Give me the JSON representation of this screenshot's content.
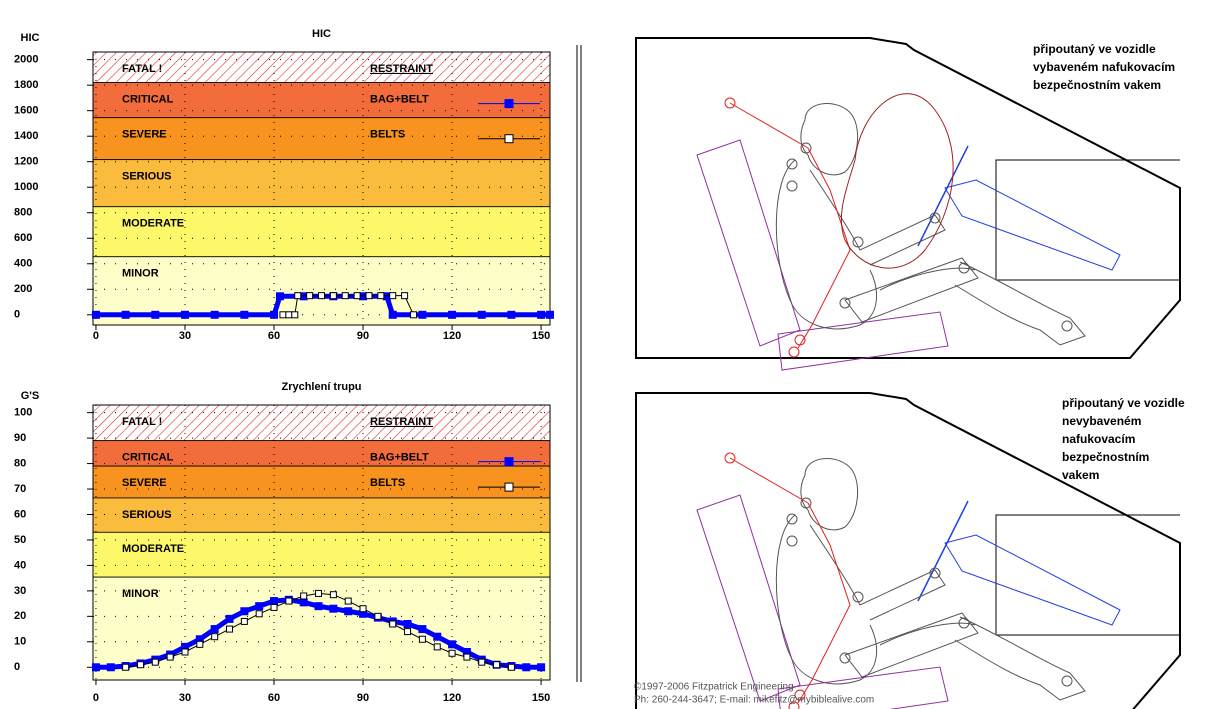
{
  "chart_data": [
    {
      "type": "line",
      "title": "HIC",
      "ylabel": "HIC",
      "legend_title": "RESTRAINT",
      "xlim": [
        -1,
        153
      ],
      "ylim": [
        -80,
        2060
      ],
      "xticks": [
        0,
        30,
        60,
        90,
        120,
        150
      ],
      "yticks": [
        0,
        200,
        400,
        600,
        800,
        1000,
        1200,
        1400,
        1600,
        1800,
        2000
      ],
      "grid": true,
      "bands": [
        {
          "label": "FATAL !",
          "bottom": 1820,
          "color": "#ffffff",
          "hatch": true
        },
        {
          "label": "CRITICAL",
          "bottom": 1545,
          "color": "#f26c3c"
        },
        {
          "label": "SEVERE",
          "bottom": 1216,
          "color": "#f7931e"
        },
        {
          "label": "SERIOUS",
          "bottom": 847,
          "color": "#fbbb3c"
        },
        {
          "label": "MODERATE",
          "bottom": 455,
          "color": "#fdf76a"
        },
        {
          "label": "MINOR",
          "color": "#fefec8"
        }
      ],
      "series": [
        {
          "name": "BAG+BELT",
          "color": "#0000ff",
          "marker": "filled",
          "x": [
            0,
            10,
            20,
            30,
            40,
            50,
            60,
            62,
            70,
            80,
            90,
            98,
            100,
            110,
            120,
            130,
            140,
            150,
            153
          ],
          "values": [
            0,
            0,
            0,
            0,
            0,
            0,
            0,
            145,
            145,
            145,
            145,
            145,
            0,
            0,
            0,
            0,
            0,
            0,
            0
          ]
        },
        {
          "name": "BELTS",
          "color": "#000000",
          "marker": "open",
          "x": [
            63,
            65,
            67,
            68,
            72,
            76,
            80,
            84,
            88,
            92,
            96,
            100,
            104,
            107
          ],
          "values": [
            0,
            0,
            0,
            150,
            150,
            150,
            150,
            150,
            150,
            150,
            150,
            150,
            150,
            0
          ]
        }
      ]
    },
    {
      "type": "line",
      "title": "Zrychlení trupu",
      "ylabel": "G'S",
      "legend_title": "RESTRAINT",
      "xlim": [
        -1,
        153
      ],
      "ylim": [
        -5,
        103
      ],
      "xticks": [
        0,
        30,
        60,
        90,
        120,
        150
      ],
      "yticks": [
        0,
        10,
        20,
        30,
        40,
        50,
        60,
        70,
        80,
        90,
        100
      ],
      "grid": true,
      "bands": [
        {
          "label": "FATAL !",
          "bottom": 89,
          "color": "#ffffff",
          "hatch": true
        },
        {
          "label": "CRITICAL",
          "bottom": 79,
          "color": "#f26c3c"
        },
        {
          "label": "SEVERE",
          "bottom": 66.5,
          "color": "#f7931e"
        },
        {
          "label": "SERIOUS",
          "bottom": 53,
          "color": "#fbbb3c"
        },
        {
          "label": "MODERATE",
          "bottom": 35.4,
          "color": "#fdf76a"
        },
        {
          "label": "MINOR",
          "color": "#fefec8"
        }
      ],
      "series": [
        {
          "name": "BAG+BELT",
          "color": "#0000ff",
          "marker": "filled",
          "x": [
            0,
            5,
            10,
            15,
            20,
            25,
            30,
            35,
            40,
            45,
            50,
            55,
            60,
            65,
            70,
            75,
            80,
            85,
            90,
            95,
            100,
            105,
            110,
            115,
            120,
            125,
            130,
            135,
            140,
            145,
            150
          ],
          "values": [
            0,
            0,
            0.5,
            1.5,
            3,
            5,
            8,
            11,
            15,
            19,
            22,
            24,
            26,
            26.5,
            25.5,
            24,
            23,
            22,
            21,
            19.5,
            18,
            17,
            15,
            12,
            9,
            6,
            3,
            1,
            0.5,
            0,
            0
          ]
        },
        {
          "name": "BELTS",
          "color": "#000000",
          "marker": "open",
          "x": [
            10,
            15,
            20,
            25,
            30,
            35,
            40,
            45,
            50,
            55,
            60,
            65,
            70,
            75,
            80,
            85,
            90,
            95,
            100,
            105,
            110,
            115,
            120,
            125,
            130,
            135,
            140
          ],
          "values": [
            0,
            1,
            2,
            4,
            6,
            9,
            12,
            15,
            18,
            21,
            23.5,
            26,
            28,
            29,
            28.5,
            26,
            23,
            20,
            17,
            14,
            11,
            8,
            5.5,
            4,
            2,
            1,
            0
          ]
        }
      ]
    }
  ],
  "panels": [
    {
      "caption": [
        "připoutaný ve vozidle",
        "vybaveném nafukovacím",
        "bezpečnostním vakem"
      ]
    },
    {
      "caption": [
        "připoutaný ve vozidle",
        "nevybaveném",
        "nafukovacím",
        "bezpečnostním",
        "vakem"
      ]
    }
  ],
  "footer": [
    "©1997-2006 Fitzpatrick Engineering",
    "Ph: 260-244-3647; E-mail: mikefitz@mybiblealive.com"
  ]
}
